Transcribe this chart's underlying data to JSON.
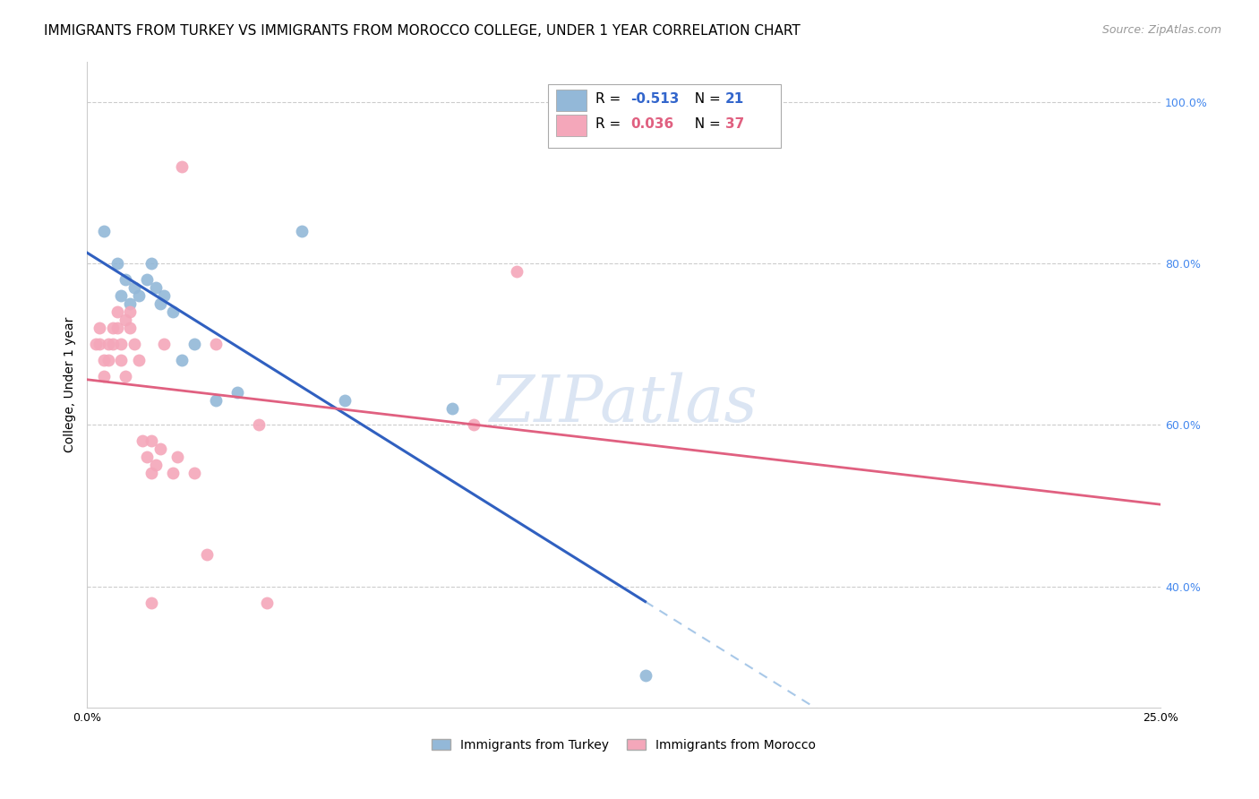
{
  "title": "IMMIGRANTS FROM TURKEY VS IMMIGRANTS FROM MOROCCO COLLEGE, UNDER 1 YEAR CORRELATION CHART",
  "source": "Source: ZipAtlas.com",
  "ylabel": "College, Under 1 year",
  "xlim": [
    0.0,
    0.25
  ],
  "ylim": [
    0.25,
    1.05
  ],
  "ytick_values": [
    1.0,
    0.8,
    0.6,
    0.4
  ],
  "ytick_labels": [
    "100.0%",
    "80.0%",
    "60.0%",
    "40.0%"
  ],
  "turkey_color": "#93b8d8",
  "morocco_color": "#f4a7ba",
  "turkey_line_color": "#3060c0",
  "turkey_dash_color": "#a8c8e8",
  "morocco_line_color": "#e06080",
  "r_turkey": -0.513,
  "n_turkey": 21,
  "r_morocco": 0.036,
  "n_morocco": 37,
  "turkey_scatter": [
    [
      0.004,
      0.84
    ],
    [
      0.007,
      0.8
    ],
    [
      0.008,
      0.76
    ],
    [
      0.009,
      0.78
    ],
    [
      0.01,
      0.75
    ],
    [
      0.011,
      0.77
    ],
    [
      0.012,
      0.76
    ],
    [
      0.014,
      0.78
    ],
    [
      0.015,
      0.8
    ],
    [
      0.016,
      0.77
    ],
    [
      0.017,
      0.75
    ],
    [
      0.018,
      0.76
    ],
    [
      0.02,
      0.74
    ],
    [
      0.022,
      0.68
    ],
    [
      0.025,
      0.7
    ],
    [
      0.03,
      0.63
    ],
    [
      0.035,
      0.64
    ],
    [
      0.05,
      0.84
    ],
    [
      0.06,
      0.63
    ],
    [
      0.085,
      0.62
    ],
    [
      0.13,
      0.29
    ]
  ],
  "morocco_scatter": [
    [
      0.002,
      0.7
    ],
    [
      0.003,
      0.7
    ],
    [
      0.003,
      0.72
    ],
    [
      0.004,
      0.68
    ],
    [
      0.004,
      0.66
    ],
    [
      0.005,
      0.7
    ],
    [
      0.005,
      0.68
    ],
    [
      0.006,
      0.72
    ],
    [
      0.006,
      0.7
    ],
    [
      0.007,
      0.74
    ],
    [
      0.007,
      0.72
    ],
    [
      0.008,
      0.7
    ],
    [
      0.008,
      0.68
    ],
    [
      0.009,
      0.73
    ],
    [
      0.009,
      0.66
    ],
    [
      0.01,
      0.74
    ],
    [
      0.01,
      0.72
    ],
    [
      0.011,
      0.7
    ],
    [
      0.012,
      0.68
    ],
    [
      0.013,
      0.58
    ],
    [
      0.014,
      0.56
    ],
    [
      0.015,
      0.58
    ],
    [
      0.015,
      0.54
    ],
    [
      0.016,
      0.55
    ],
    [
      0.017,
      0.57
    ],
    [
      0.018,
      0.7
    ],
    [
      0.02,
      0.54
    ],
    [
      0.021,
      0.56
    ],
    [
      0.022,
      0.92
    ],
    [
      0.025,
      0.54
    ],
    [
      0.028,
      0.44
    ],
    [
      0.03,
      0.7
    ],
    [
      0.04,
      0.6
    ],
    [
      0.042,
      0.38
    ],
    [
      0.09,
      0.6
    ],
    [
      0.1,
      0.79
    ],
    [
      0.015,
      0.38
    ]
  ],
  "background_color": "#ffffff",
  "grid_color": "#cccccc",
  "watermark_text": "ZIPatlas",
  "watermark_color": "#ccdaee",
  "title_fontsize": 11,
  "source_fontsize": 9,
  "axis_label_fontsize": 10,
  "tick_fontsize": 9,
  "legend_fontsize": 11
}
